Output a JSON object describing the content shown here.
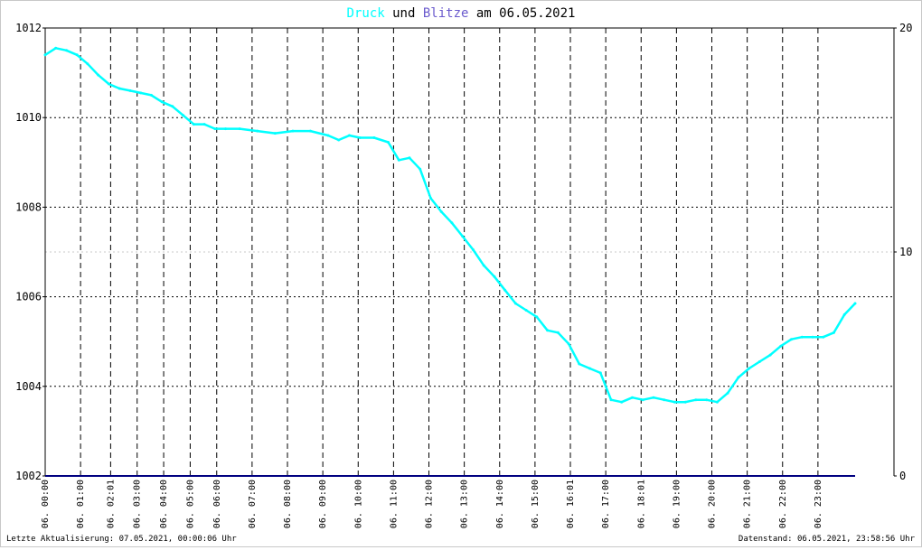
{
  "title": {
    "part1": "Druck",
    "part2": " und ",
    "part3": "Blitze",
    "part4": " am 06.05.2021"
  },
  "footer": {
    "left": "Letzte Aktualisierung: 07.05.2021, 00:00:06 Uhr",
    "right": "Datenstand: 06.05.2021, 23:58:56 Uhr"
  },
  "colors": {
    "pressure": "#00ffff",
    "lightning": "#000080",
    "title_blitze": "#6a5acd",
    "grid": "#000000"
  },
  "chart_data": {
    "type": "line",
    "title": "Druck und Blitze am 06.05.2021",
    "ylim_left": [
      1002,
      1012
    ],
    "yticks_left": [
      1002,
      1004,
      1006,
      1008,
      1010,
      1012
    ],
    "ylim_right": [
      0,
      20
    ],
    "yticks_right": [
      0,
      10,
      20
    ],
    "xlim_hours": [
      0,
      24
    ],
    "xticks": [
      {
        "h": 0,
        "label": "06. 00:00"
      },
      {
        "h": 1,
        "label": "06. 01:00"
      },
      {
        "h": 1.85,
        "label": "06. 02:01"
      },
      {
        "h": 2.6,
        "label": "06. 03:00"
      },
      {
        "h": 3.35,
        "label": "06. 04:00"
      },
      {
        "h": 4.1,
        "label": "06. 05:00"
      },
      {
        "h": 4.85,
        "label": "06. 06:00"
      },
      {
        "h": 5.85,
        "label": "06. 07:00"
      },
      {
        "h": 6.85,
        "label": "06. 08:00"
      },
      {
        "h": 7.85,
        "label": "06. 09:00"
      },
      {
        "h": 8.85,
        "label": "06. 10:00"
      },
      {
        "h": 9.85,
        "label": "06. 11:00"
      },
      {
        "h": 10.85,
        "label": "06. 12:00"
      },
      {
        "h": 11.85,
        "label": "06. 13:00"
      },
      {
        "h": 12.85,
        "label": "06. 14:00"
      },
      {
        "h": 13.85,
        "label": "06. 15:00"
      },
      {
        "h": 14.85,
        "label": "06. 16:01"
      },
      {
        "h": 15.85,
        "label": "06. 17:00"
      },
      {
        "h": 16.85,
        "label": "06. 18:01"
      },
      {
        "h": 17.85,
        "label": "06. 19:00"
      },
      {
        "h": 18.85,
        "label": "06. 20:00"
      },
      {
        "h": 19.85,
        "label": "06. 21:00"
      },
      {
        "h": 20.85,
        "label": "06. 22:00"
      },
      {
        "h": 21.85,
        "label": "06. 23:00"
      }
    ],
    "series": [
      {
        "name": "Druck",
        "axis": "left",
        "x": [
          0,
          0.3,
          0.6,
          0.9,
          1.2,
          1.5,
          1.8,
          2.1,
          2.4,
          2.7,
          3.0,
          3.3,
          3.6,
          3.9,
          4.2,
          4.5,
          4.8,
          5.1,
          5.5,
          6.0,
          6.5,
          7.0,
          7.5,
          8.0,
          8.3,
          8.6,
          8.9,
          9.3,
          9.7,
          10.0,
          10.3,
          10.6,
          10.9,
          11.2,
          11.5,
          11.8,
          12.1,
          12.4,
          12.7,
          13.0,
          13.3,
          13.6,
          13.9,
          14.2,
          14.5,
          14.8,
          15.1,
          15.4,
          15.7,
          16.0,
          16.3,
          16.6,
          16.9,
          17.2,
          17.5,
          17.8,
          18.1,
          18.4,
          18.7,
          19.0,
          19.3,
          19.6,
          19.9,
          20.2,
          20.5,
          20.8,
          21.1,
          21.4,
          21.7,
          22.0,
          22.3,
          22.6,
          22.9
        ],
        "values": [
          1011.4,
          1011.55,
          1011.5,
          1011.4,
          1011.2,
          1010.95,
          1010.75,
          1010.65,
          1010.6,
          1010.55,
          1010.5,
          1010.35,
          1010.25,
          1010.05,
          1009.85,
          1009.85,
          1009.75,
          1009.75,
          1009.75,
          1009.7,
          1009.65,
          1009.7,
          1009.7,
          1009.6,
          1009.5,
          1009.6,
          1009.55,
          1009.55,
          1009.45,
          1009.05,
          1009.1,
          1008.85,
          1008.2,
          1007.9,
          1007.65,
          1007.35,
          1007.05,
          1006.7,
          1006.45,
          1006.15,
          1005.85,
          1005.7,
          1005.55,
          1005.25,
          1005.2,
          1004.95,
          1004.5,
          1004.4,
          1004.3,
          1003.7,
          1003.65,
          1003.75,
          1003.7,
          1003.75,
          1003.7,
          1003.65,
          1003.65,
          1003.7,
          1003.7,
          1003.65,
          1003.85,
          1004.2,
          1004.4,
          1004.55,
          1004.7,
          1004.9,
          1005.05,
          1005.1,
          1005.1,
          1005.1,
          1005.2,
          1005.6,
          1005.85
        ]
      },
      {
        "name": "Blitze",
        "axis": "right",
        "x": [
          0,
          22.9
        ],
        "values": [
          0,
          0
        ]
      }
    ],
    "grid": true
  }
}
